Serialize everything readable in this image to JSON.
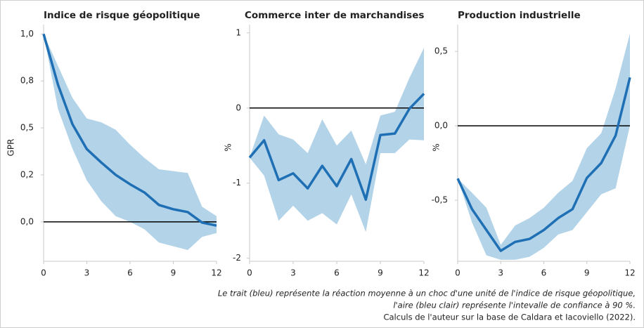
{
  "chart_data": [
    {
      "type": "line",
      "title": "Indice de risque géopolitique",
      "y_label": "GPR",
      "x": [
        0,
        1,
        2,
        3,
        4,
        5,
        6,
        7,
        8,
        9,
        10,
        11,
        12
      ],
      "xlim": [
        0,
        12
      ],
      "xticks": [
        0,
        3,
        6,
        9,
        12
      ],
      "ylim": [
        -0.21,
        1.05
      ],
      "yticks": [
        {
          "value": 0,
          "label": "0,0"
        },
        {
          "value": 0.25,
          "label": "0,2"
        },
        {
          "value": 0.5,
          "label": "0,5"
        },
        {
          "value": 0.75,
          "label": "0,8"
        },
        {
          "value": 1,
          "label": "1,0"
        }
      ],
      "color": "#1f6fb5",
      "band_color": "#b3d3e8",
      "values": [
        1.0,
        0.73,
        0.52,
        0.387,
        0.316,
        0.25,
        0.2,
        0.156,
        0.09,
        0.067,
        0.052,
        -0.004,
        -0.02
      ],
      "upper": [
        1.0,
        0.83,
        0.66,
        0.55,
        0.53,
        0.49,
        0.41,
        0.34,
        0.28,
        0.27,
        0.26,
        0.08,
        0.03
      ],
      "lower": [
        1.0,
        0.6,
        0.39,
        0.22,
        0.11,
        0.03,
        0.0,
        -0.04,
        -0.11,
        -0.13,
        -0.15,
        -0.08,
        -0.06
      ]
    },
    {
      "type": "line",
      "title": "Commerce inter de marchandises",
      "y_label": "%",
      "x": [
        0,
        1,
        2,
        3,
        4,
        5,
        6,
        7,
        8,
        9,
        10,
        11,
        12
      ],
      "xlim": [
        0,
        12
      ],
      "xticks": [
        0,
        3,
        6,
        9,
        12
      ],
      "ylim": [
        -2.04,
        1.11
      ],
      "yticks": [
        -2,
        -1,
        0,
        1
      ],
      "color": "#1f6fb5",
      "band_color": "#b3d3e8",
      "values": [
        -0.66,
        -0.43,
        -0.96,
        -0.87,
        -1.07,
        -0.77,
        -1.04,
        -0.68,
        -1.22,
        -0.36,
        -0.34,
        -0.01,
        0.19
      ],
      "upper": [
        -0.66,
        -0.1,
        -0.35,
        -0.42,
        -0.6,
        -0.15,
        -0.5,
        -0.3,
        -0.75,
        -0.1,
        -0.05,
        0.4,
        0.8
      ],
      "lower": [
        -0.66,
        -0.9,
        -1.5,
        -1.3,
        -1.5,
        -1.4,
        -1.55,
        -1.15,
        -1.65,
        -0.6,
        -0.6,
        -0.42,
        -0.43
      ]
    },
    {
      "type": "line",
      "title": "Production industrielle",
      "y_label": "%",
      "x": [
        0,
        1,
        2,
        3,
        4,
        5,
        6,
        7,
        8,
        9,
        10,
        11,
        12
      ],
      "xlim": [
        0,
        12
      ],
      "xticks": [
        0,
        3,
        6,
        9,
        12
      ],
      "ylim": [
        -0.91,
        0.68
      ],
      "yticks": [
        {
          "value": -0.5,
          "label": "-0,5"
        },
        {
          "value": 0,
          "label": "0,0"
        },
        {
          "value": 0.5,
          "label": "0,5"
        }
      ],
      "color": "#1f6fb5",
      "band_color": "#b3d3e8",
      "values": [
        -0.354,
        -0.56,
        -0.7,
        -0.84,
        -0.78,
        -0.76,
        -0.7,
        -0.62,
        -0.56,
        -0.35,
        -0.25,
        -0.066,
        0.325
      ],
      "upper": [
        -0.354,
        -0.45,
        -0.55,
        -0.8,
        -0.67,
        -0.62,
        -0.55,
        -0.45,
        -0.37,
        -0.15,
        -0.05,
        0.25,
        0.62
      ],
      "lower": [
        -0.354,
        -0.65,
        -0.87,
        -0.9,
        -0.9,
        -0.88,
        -0.82,
        -0.73,
        -0.7,
        -0.58,
        -0.46,
        -0.42,
        0.0
      ]
    }
  ],
  "notes": [
    "Le trait (bleu) représente la réaction moyenne à un choc d'une unité de l'indice de risque géopolitique,",
    "l'aire (bleu clair) représente l'intevalle de confiance à 90 %.",
    "Calculs de l'auteur sur la base de Caldara et Iacoviello (2022)."
  ]
}
